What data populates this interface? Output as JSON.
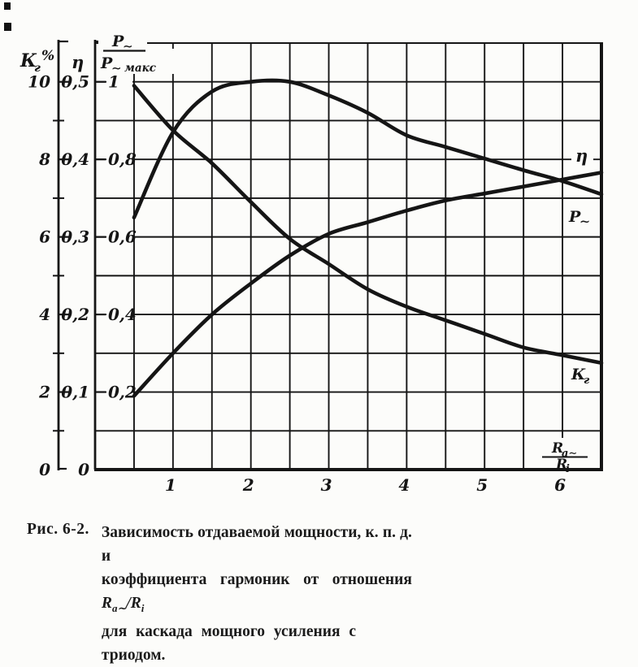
{
  "figure": {
    "k2_axis": {
      "title_main": "К",
      "title_sub": "г",
      "title_unit": "%",
      "tick_labels": [
        "10",
        "8",
        "6",
        "4",
        "2",
        "0"
      ]
    },
    "eta_axis": {
      "title": "η",
      "tick_labels": [
        "0,5",
        "0,4",
        "0,3",
        "0,2",
        "0,1",
        "0"
      ]
    },
    "p_axis": {
      "num_main": "P",
      "num_sub": "∼",
      "den_main": "P",
      "den_sub": "∼",
      "den_suffix": "макс",
      "tick_labels": [
        "1",
        "0,8",
        "0,6",
        "0,4",
        "0,2"
      ]
    },
    "x_axis": {
      "tick_labels": [
        "1",
        "2",
        "3",
        "4",
        "5",
        "6"
      ],
      "title_num_main": "R",
      "title_num_sub": "а∼",
      "title_den_main": "R",
      "title_den_sub": "i"
    },
    "curve_labels": {
      "eta": "η",
      "p_main": "P",
      "p_sub": "∼",
      "k2_main": "К",
      "k2_sub": "г"
    }
  },
  "chart_data": {
    "type": "line",
    "title": "",
    "x_label": "Ra∼/Ri",
    "x_range": [
      0,
      6.5
    ],
    "x_gridline_step": 0.5,
    "x_values": [
      0.5,
      1,
      1.5,
      2,
      2.5,
      3,
      3.5,
      4,
      4.5,
      5,
      5.5,
      6,
      6.5
    ],
    "series": [
      {
        "name": "Кг, %",
        "scale": "k2",
        "axis_range": [
          0,
          10
        ],
        "values": [
          9.9,
          8.75,
          7.9,
          6.9,
          5.95,
          5.3,
          4.65,
          4.2,
          3.85,
          3.5,
          3.15,
          2.95,
          2.75
        ]
      },
      {
        "name": "P∼/P∼макс",
        "scale": "p",
        "axis_range": [
          0,
          1
        ],
        "values": [
          0.65,
          0.87,
          0.975,
          1.0,
          1.0,
          0.965,
          0.92,
          0.862,
          0.832,
          0.802,
          0.772,
          0.744,
          0.71
        ]
      },
      {
        "name": "η",
        "scale": "eta",
        "axis_range": [
          0,
          0.5
        ],
        "values": [
          0.095,
          0.15,
          0.2,
          0.24,
          0.276,
          0.304,
          0.319,
          0.334,
          0.347,
          0.356,
          0.365,
          0.374,
          0.383
        ]
      }
    ],
    "y_axes": [
      {
        "title": "Кг, %",
        "ticks": [
          10,
          8,
          6,
          4,
          2,
          0
        ]
      },
      {
        "title": "η",
        "ticks": [
          0.5,
          0.4,
          0.3,
          0.2,
          0.1,
          0
        ]
      },
      {
        "title": "P∼/P∼макс",
        "ticks": [
          1,
          0.8,
          0.6,
          0.4,
          0.2
        ]
      }
    ],
    "grid": true,
    "legend_position": "curve-end-labels"
  },
  "caption": {
    "fig": "Рис. 6-2.",
    "line1": "Зависимость отдаваемой мощности, к. п. д. и",
    "line2": "коэффициента гармоник от отношения",
    "formula": {
      "base1": "R",
      "sub1": "а∼",
      "slash": "/",
      "base2": "R",
      "sub2": "i"
    },
    "line3": "для каскада мощного усиления с триодом."
  }
}
